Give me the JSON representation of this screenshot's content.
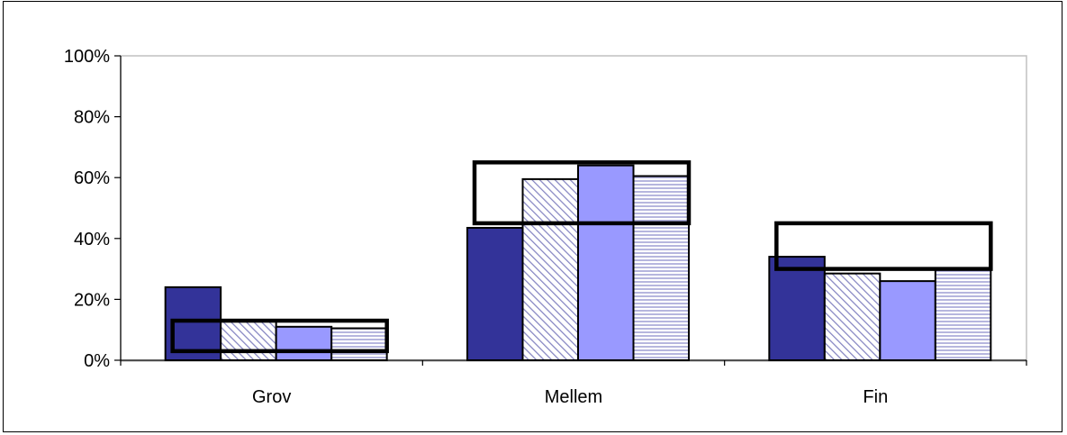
{
  "chart_data": {
    "type": "bar",
    "title": "",
    "xlabel": "",
    "ylabel": "",
    "categories": [
      "Grov",
      "Mellem",
      "Fin"
    ],
    "ylim": [
      0,
      100
    ],
    "yticks": [
      "0%",
      "20%",
      "40%",
      "60%",
      "80%",
      "100%"
    ],
    "ytick_values": [
      0,
      20,
      40,
      60,
      80,
      100
    ],
    "grid": false,
    "legend": "none",
    "series": [
      {
        "values": [
          24,
          43.5,
          34
        ],
        "fill": "solid",
        "color": "#333399"
      },
      {
        "values": [
          13,
          59.5,
          28.5
        ],
        "fill": "diagonal-hatch",
        "color": "#9999cc"
      },
      {
        "values": [
          11,
          64,
          26
        ],
        "fill": "solid",
        "color": "#9999ff"
      },
      {
        "values": [
          10.5,
          60.5,
          30
        ],
        "fill": "horizontal-hatch",
        "color": "#9999cc"
      }
    ],
    "ranges": [
      {
        "category": "Grov",
        "low": 3,
        "high": 13
      },
      {
        "category": "Mellem",
        "low": 45,
        "high": 65
      },
      {
        "category": "Fin",
        "low": 30,
        "high": 45
      }
    ]
  }
}
